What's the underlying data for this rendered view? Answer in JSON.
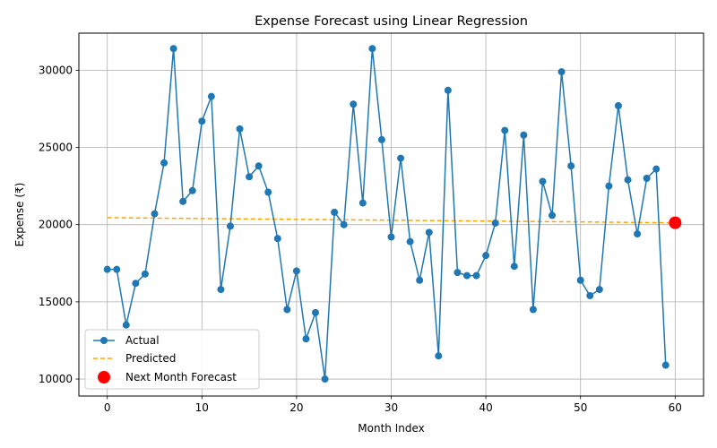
{
  "chart_data": {
    "type": "line",
    "title": "Expense Forecast using Linear Regression",
    "xlabel": "Month Index",
    "ylabel": "Expense (₹)",
    "xlim": [
      -3,
      63
    ],
    "ylim": [
      8900,
      32400
    ],
    "xticks": [
      0,
      10,
      20,
      30,
      40,
      50,
      60
    ],
    "yticks": [
      10000,
      15000,
      20000,
      25000,
      30000
    ],
    "grid": true,
    "legend_position": "lower-left",
    "series": [
      {
        "name": "Actual",
        "style": "line-with-markers",
        "color": "#1f77b4",
        "x": [
          0,
          1,
          2,
          3,
          4,
          5,
          6,
          7,
          8,
          9,
          10,
          11,
          12,
          13,
          14,
          15,
          16,
          17,
          18,
          19,
          20,
          21,
          22,
          23,
          24,
          25,
          26,
          27,
          28,
          29,
          30,
          31,
          32,
          33,
          34,
          35,
          36,
          37,
          38,
          39,
          40,
          41,
          42,
          43,
          44,
          45,
          46,
          47,
          48,
          49,
          50,
          51,
          52,
          53,
          54,
          55,
          56,
          57,
          58,
          59
        ],
        "values": [
          17100,
          17100,
          13500,
          16200,
          16800,
          20700,
          24000,
          31400,
          21500,
          22200,
          26700,
          28300,
          15800,
          19900,
          26200,
          23100,
          23800,
          22100,
          19100,
          14500,
          17000,
          12600,
          14300,
          10000,
          20800,
          20000,
          27800,
          21400,
          31400,
          25500,
          19200,
          24300,
          18900,
          16400,
          19500,
          11500,
          28700,
          16900,
          16700,
          16700,
          18000,
          20100,
          26100,
          17300,
          25800,
          14500,
          22800,
          20600,
          29900,
          23800,
          16400,
          15400,
          15800,
          22500,
          27700,
          22900,
          19400,
          23000,
          23600,
          10900
        ]
      },
      {
        "name": "Predicted",
        "style": "dashed-line",
        "color": "#ffa500",
        "x": [
          0,
          60
        ],
        "values": [
          20450,
          20120
        ]
      },
      {
        "name": "Next Month Forecast",
        "style": "marker",
        "color": "#ff0000",
        "x": [
          60
        ],
        "values": [
          20120
        ]
      }
    ]
  }
}
